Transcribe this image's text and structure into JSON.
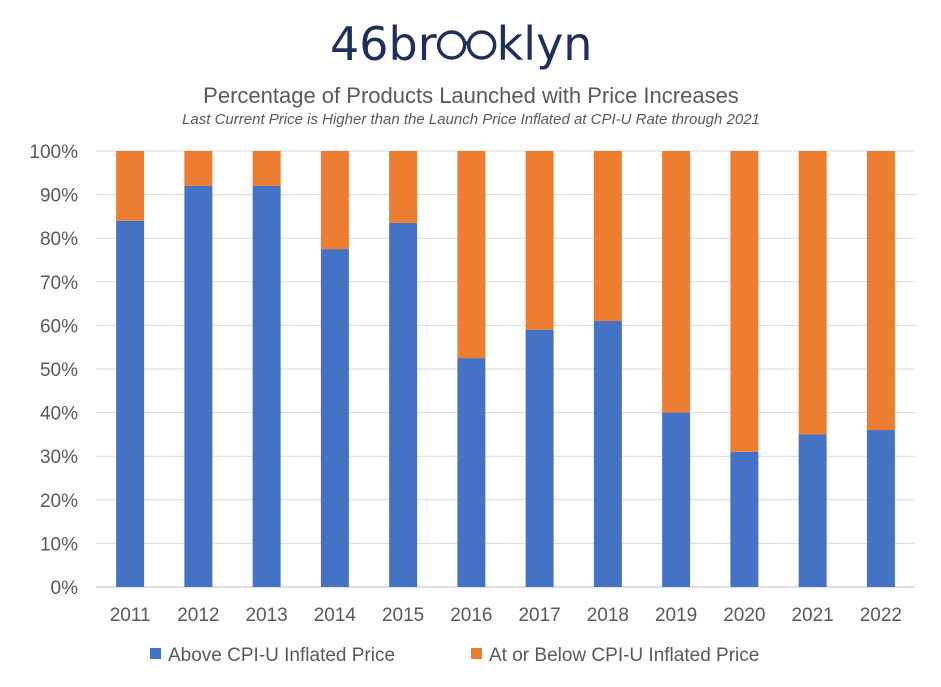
{
  "logo": {
    "prefix": "46br",
    "suffix": "klyn",
    "color": "#1f2f5c"
  },
  "chart_data": {
    "type": "bar",
    "stacked": true,
    "title": "Percentage of Products Launched with Price Increases",
    "subtitle": "Last Current Price is Higher than the Launch Price Inflated at CPI-U Rate through 2021",
    "categories": [
      "2011",
      "2012",
      "2013",
      "2014",
      "2015",
      "2016",
      "2017",
      "2018",
      "2019",
      "2020",
      "2021",
      "2022"
    ],
    "series": [
      {
        "name": "Above CPI-U Inflated Price",
        "color": "#4472c4",
        "values": [
          84,
          92,
          92,
          77.5,
          83.5,
          52.5,
          59,
          61,
          40,
          31,
          35,
          36
        ]
      },
      {
        "name": "At or Below CPI-U Inflated Price",
        "color": "#ed7d31",
        "values": [
          16,
          8,
          8,
          22.5,
          16.5,
          47.5,
          41,
          39,
          60,
          69,
          65,
          64
        ]
      }
    ],
    "ylim": [
      0,
      100
    ],
    "yticks": [
      "0%",
      "10%",
      "20%",
      "30%",
      "40%",
      "50%",
      "60%",
      "70%",
      "80%",
      "90%",
      "100%"
    ],
    "grid": true,
    "legend_position": "bottom"
  }
}
